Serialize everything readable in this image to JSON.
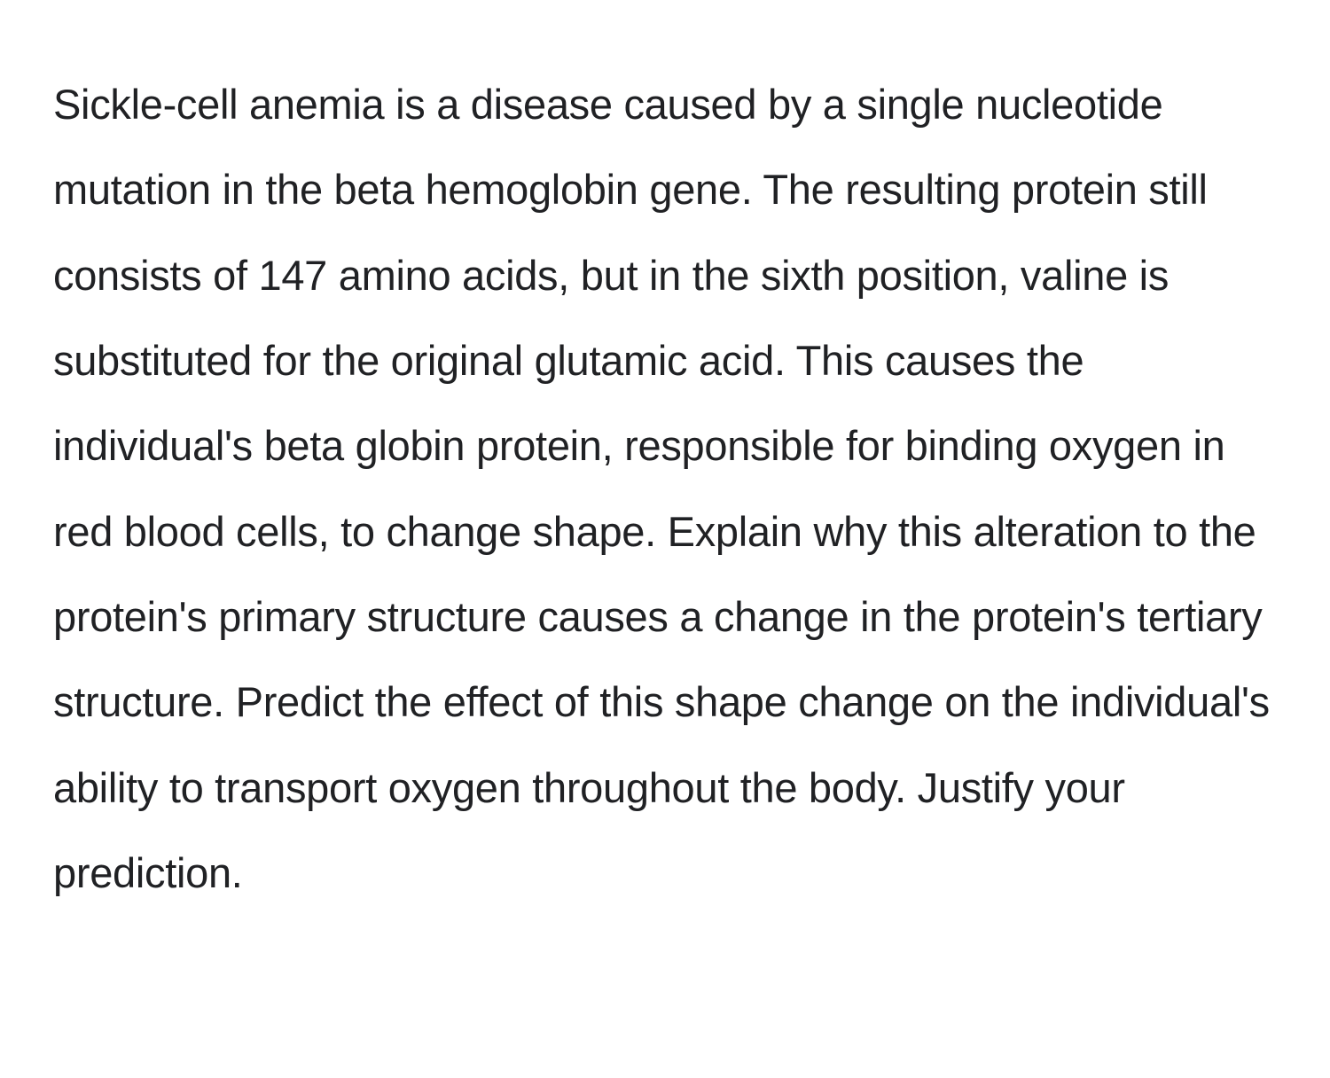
{
  "document": {
    "text": "Sickle-cell anemia is a disease caused by a single nucleotide mutation in the beta hemoglobin gene. The resulting protein still consists of 147 amino acids, but in the sixth position, valine is substituted for the original glutamic acid. This causes the individual's beta globin protein, responsible for binding oxygen in red blood cells, to change shape. Explain why this alteration to the protein's primary structure causes a change in the protein's tertiary structure. Predict the effect of this shape change on the individual's ability to transport oxygen throughout the body. Justify your prediction.",
    "font_size": 47,
    "line_height": 2.05,
    "text_color": "#202124",
    "background_color": "#ffffff",
    "font_weight": 400
  }
}
